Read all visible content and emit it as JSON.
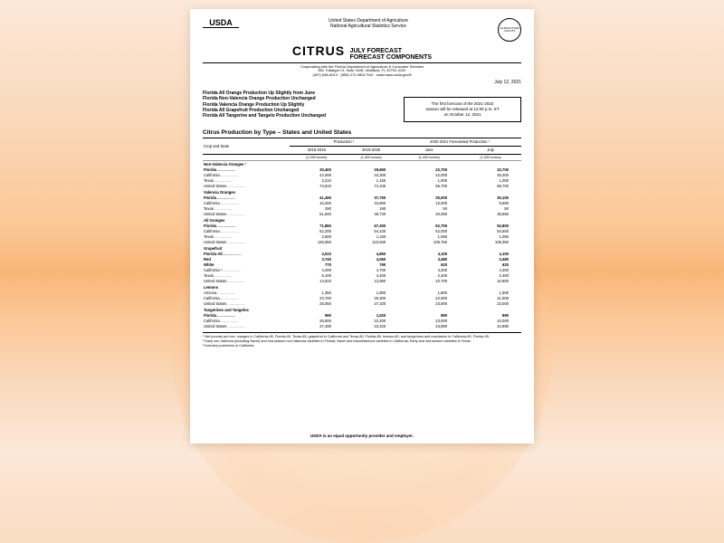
{
  "header": {
    "logo": "USDA",
    "dept1": "United States Department of Agriculture",
    "dept2": "National Agricultural Statistics Service",
    "seal": "AGRICULTURE COUNTS",
    "title_main": "CITRUS",
    "title_sub1": "JULY FORECAST",
    "title_sub2": "FORECAST COMPONENTS",
    "coop1": "Cooperating with the Florida Department of Agriculture & Consumer Services",
    "coop2": "851 Trafalgar Ct, Suite 310E, Maitland, FL 32751-4132",
    "coop3": "(407) 648-6013 · (855) 271-9801 FAX · www.nass.usda.gov/fl",
    "date": "July 12, 2021"
  },
  "bulletins": [
    "Florida All Orange Production Up Slightly from June",
    "Florida Non-Valencia Orange Production Unchanged",
    "Florida Valencia Orange Production Up Slightly",
    "Florida All Grapefruit Production Unchanged",
    "Florida All Tangerine and Tangelo Production Unchanged"
  ],
  "notice": {
    "l1": "The first forecast of the 2021-2022",
    "l2": "season will be released at 12:00 p.m. ET",
    "l3": "on October 12, 2021"
  },
  "section_title": "Citrus Production by Type – States and United States",
  "table": {
    "col_crop": "Crop and State",
    "col_prod": "Production ¹",
    "col_fore": "2020-2021 Forecasted Production ¹",
    "col_y1": "2018-2019",
    "col_y2": "2019-2020",
    "col_june": "June",
    "col_july": "July",
    "units": "(1,000 boxes)",
    "rows": [
      {
        "group": true,
        "label": "Non-Valencia Oranges ²"
      },
      {
        "bold": true,
        "label": "Florida",
        "v": [
          "30,400",
          "29,650",
          "22,700",
          "22,700"
        ]
      },
      {
        "label": "California",
        "v": [
          "42,000",
          "43,300",
          "42,000",
          "45,000"
        ]
      },
      {
        "label": "Texas",
        "v": [
          "2,210",
          "1,150",
          "1,000",
          "1,000"
        ]
      },
      {
        "label": "United States",
        "v": [
          "74,610",
          "74,100",
          "65,700",
          "68,700"
        ]
      },
      {
        "group": true,
        "label": "Valencia Oranges"
      },
      {
        "bold": true,
        "label": "Florida",
        "v": [
          "41,450",
          "37,750",
          "30,000",
          "30,100"
        ]
      },
      {
        "label": "California",
        "v": [
          "10,200",
          "10,800",
          "10,000",
          "9,500"
        ]
      },
      {
        "label": "Texas",
        "v": [
          "290",
          "190",
          "50",
          "50"
        ]
      },
      {
        "label": "United States",
        "v": [
          "51,940",
          "48,740",
          "40,050",
          "39,650"
        ]
      },
      {
        "group": true,
        "label": "All Oranges"
      },
      {
        "bold": true,
        "label": "Florida",
        "v": [
          "71,850",
          "67,400",
          "52,700",
          "52,800"
        ]
      },
      {
        "label": "California",
        "v": [
          "52,200",
          "54,100",
          "52,000",
          "54,500"
        ]
      },
      {
        "label": "Texas",
        "v": [
          "2,500",
          "1,340",
          "1,050",
          "1,050"
        ]
      },
      {
        "label": "United States",
        "v": [
          "126,550",
          "122,840",
          "105,750",
          "108,350"
        ]
      },
      {
        "group": true,
        "label": "Grapefruit"
      },
      {
        "bold": true,
        "label": "Florida-All",
        "v": [
          "4,510",
          "4,850",
          "4,100",
          "4,100"
        ]
      },
      {
        "bold": true,
        "label": "  Red",
        "v": [
          "3,740",
          "4,060",
          "3,480",
          "3,480"
        ]
      },
      {
        "bold": true,
        "label": "  White",
        "v": [
          "770",
          "790",
          "620",
          "620"
        ]
      },
      {
        "label": "California ³",
        "v": [
          "4,200",
          "4,700",
          "4,200",
          "4,400"
        ]
      },
      {
        "label": "Texas",
        "v": [
          "6,100",
          "4,400",
          "2,400",
          "2,400"
        ]
      },
      {
        "label": "United States",
        "v": [
          "14,810",
          "13,950",
          "10,700",
          "10,900"
        ]
      },
      {
        "group": true,
        "label": "Lemons"
      },
      {
        "label": "Arizona",
        "v": [
          "1,350",
          "1,800",
          "1,800",
          "1,500"
        ]
      },
      {
        "label": "California",
        "v": [
          "23,700",
          "25,300",
          "22,000",
          "21,500"
        ]
      },
      {
        "label": "United States",
        "v": [
          "25,050",
          "27,100",
          "23,800",
          "23,000"
        ]
      },
      {
        "group": true,
        "label": "Tangerines and Tangelos"
      },
      {
        "bold": true,
        "label": "Florida",
        "v": [
          "990",
          "1,020",
          "890",
          "890"
        ]
      },
      {
        "label": "California",
        "v": [
          "26,500",
          "22,400",
          "23,000",
          "24,000"
        ]
      },
      {
        "label": "United States",
        "v": [
          "27,490",
          "23,420",
          "23,890",
          "24,890"
        ]
      }
    ]
  },
  "footnotes": {
    "f1": "¹ Net pounds per box: oranges in California-80, Florida-90, Texas-85; grapefruit in California and Texas-80, Florida-85; lemons-80; and tangerines and mandarins in California-80, Florida-95.",
    "f2": "² Early non-Valencia (including Navel) and mid-season non-Valencia varieties in Florida; Navel and miscellaneous varieties in California; Early and mid-season varieties in Texas.",
    "f3": "³ Includes pummelos in California."
  },
  "footer": "USDA is an equal opportunity provider and employer."
}
